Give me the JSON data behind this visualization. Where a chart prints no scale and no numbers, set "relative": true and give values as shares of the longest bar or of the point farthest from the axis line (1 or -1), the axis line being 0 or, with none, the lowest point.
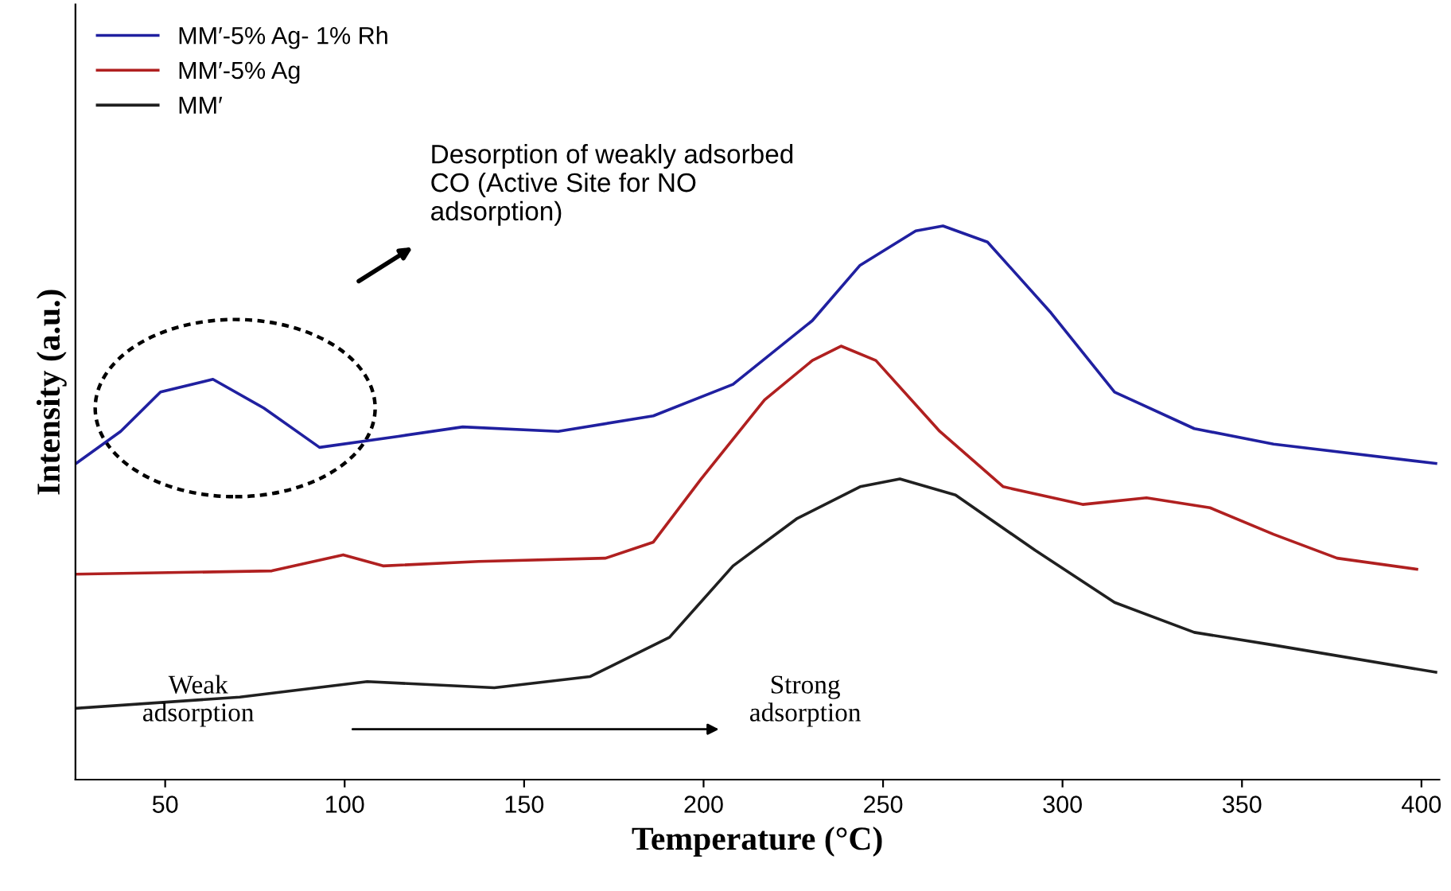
{
  "chart_data": {
    "type": "line",
    "relative": true,
    "xlabel": "Temperature (°C)",
    "ylabel": "Intensity (a.u.)",
    "xlim": [
      25,
      405
    ],
    "xticks": [
      50,
      100,
      150,
      200,
      250,
      300,
      350,
      400
    ],
    "legend": "top left",
    "grid": false,
    "marker": "none",
    "line_style": "solid",
    "tick_labels": "x",
    "series": [
      {
        "name": "MM′-5% Ag- 1% Rh",
        "color": "#2020a0",
        "x": [
          25.2,
          37.6,
          48.7,
          63.3,
          77.5,
          93,
          115,
          132.9,
          159.5,
          186,
          208.2,
          230.3,
          243.6,
          259.1,
          266.7,
          279.1,
          296.8,
          314.5,
          336.7,
          358.8,
          404
        ],
        "values": [
          0.571,
          0.629,
          0.7,
          0.723,
          0.671,
          0.6,
          0.62,
          0.637,
          0.629,
          0.657,
          0.714,
          0.829,
          0.929,
          0.991,
          1.0,
          0.971,
          0.843,
          0.7,
          0.634,
          0.606,
          0.571
        ]
      },
      {
        "name": "MM′-5% Ag",
        "color": "#b02020",
        "x": [
          25.2,
          79.7,
          99.6,
          110.7,
          137.3,
          172.7,
          186,
          199.3,
          217,
          230.3,
          238.3,
          248,
          265.8,
          283.5,
          305.6,
          323.4,
          341.1,
          358.8,
          376.5,
          398.7
        ],
        "values": [
          0.371,
          0.377,
          0.406,
          0.386,
          0.394,
          0.4,
          0.429,
          0.543,
          0.686,
          0.757,
          0.783,
          0.757,
          0.629,
          0.529,
          0.497,
          0.509,
          0.491,
          0.443,
          0.4,
          0.38
        ]
      },
      {
        "name": "MM′",
        "color": "#202020",
        "x": [
          25.2,
          70.8,
          106.3,
          141.7,
          168.3,
          190.5,
          208.2,
          225.9,
          243.6,
          254.7,
          270.2,
          292.4,
          314.5,
          336.7,
          358.8,
          404
        ],
        "values": [
          0.129,
          0.149,
          0.177,
          0.166,
          0.186,
          0.257,
          0.386,
          0.471,
          0.529,
          0.543,
          0.514,
          0.414,
          0.32,
          0.266,
          0.243,
          0.194
        ]
      }
    ],
    "annotations": [
      "Desorption of weakly adsorbed\nCO (Active Site for NO\nadsorption)",
      "Weak\nadsorption",
      "Strong\nadsorption"
    ]
  }
}
